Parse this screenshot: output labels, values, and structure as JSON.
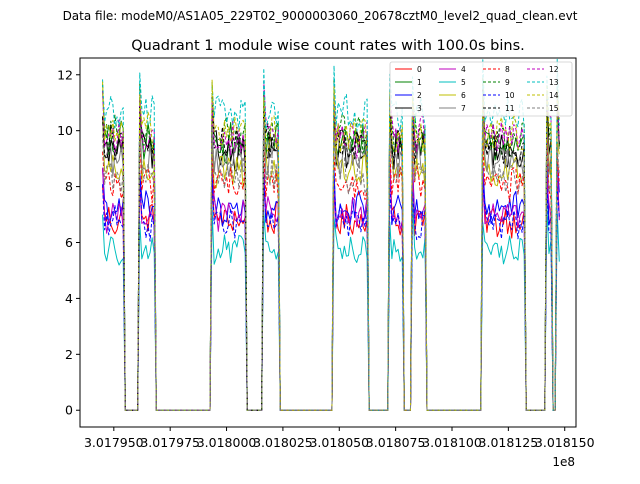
{
  "chart_data": {
    "type": "line",
    "suptitle": "Data file: modeM0/AS1A05_229T02_9000003060_20678cztM0_level2_quad_clean.evt",
    "title": "Quadrant 1 module wise count rates with 100.0s bins.",
    "xlabel": "",
    "ylabel": "",
    "x_offset_label": "1e8",
    "xlim": [
      3.017935,
      3.018155
    ],
    "ylim": [
      -0.6,
      12.6
    ],
    "x_tick_values": [
      3.01795,
      3.017975,
      3.018,
      3.018025,
      3.01805,
      3.018075,
      3.0181,
      3.018125,
      3.01815
    ],
    "x_tick_labels": [
      "3.017950",
      "3.017975",
      "3.018000",
      "3.018025",
      "3.018050",
      "3.018075",
      "3.018100",
      "3.018125",
      "3.018150"
    ],
    "y_tick_values": [
      0,
      2,
      4,
      6,
      8,
      10,
      12
    ],
    "y_tick_labels": [
      "0",
      "2",
      "4",
      "6",
      "8",
      "10",
      "12"
    ],
    "segments": [
      [
        3.017945,
        3.017955
      ],
      [
        3.017961,
        3.017968
      ],
      [
        3.017993,
        3.018009
      ],
      [
        3.018016,
        3.018023
      ],
      [
        3.018047,
        3.018063
      ],
      [
        3.018072,
        3.018078
      ],
      [
        3.018082,
        3.018088
      ],
      [
        3.018113,
        3.018132
      ],
      [
        3.018142,
        3.018144
      ],
      [
        3.018146,
        3.018148
      ]
    ],
    "zero_gaps": [
      [
        3.017955,
        3.017961
      ],
      [
        3.017968,
        3.017993
      ],
      [
        3.018009,
        3.018016
      ],
      [
        3.018023,
        3.018047
      ],
      [
        3.018063,
        3.018072
      ],
      [
        3.018078,
        3.018082
      ],
      [
        3.018088,
        3.018113
      ],
      [
        3.018132,
        3.018142
      ],
      [
        3.018144,
        3.018146
      ]
    ],
    "legend_position": "upper right",
    "series": [
      {
        "name": "0",
        "color": "#ff0000",
        "dash": "solid",
        "level": 6.8
      },
      {
        "name": "1",
        "color": "#008000",
        "dash": "solid",
        "level": 9.6
      },
      {
        "name": "2",
        "color": "#0000ff",
        "dash": "solid",
        "level": 7.2
      },
      {
        "name": "3",
        "color": "#000000",
        "dash": "solid",
        "level": 9.3
      },
      {
        "name": "4",
        "color": "#bf00bf",
        "dash": "solid",
        "level": 7.0
      },
      {
        "name": "5",
        "color": "#00bfbf",
        "dash": "solid",
        "level": 5.7
      },
      {
        "name": "6",
        "color": "#bfbf00",
        "dash": "solid",
        "level": 8.6
      },
      {
        "name": "7",
        "color": "#808080",
        "dash": "solid",
        "level": 9.0
      },
      {
        "name": "8",
        "color": "#ff0000",
        "dash": "dashed",
        "level": 8.1
      },
      {
        "name": "9",
        "color": "#008000",
        "dash": "dashed",
        "level": 9.9
      },
      {
        "name": "10",
        "color": "#0000ff",
        "dash": "dashed",
        "level": 6.7
      },
      {
        "name": "11",
        "color": "#000000",
        "dash": "dashed",
        "level": 9.5
      },
      {
        "name": "12",
        "color": "#bf00bf",
        "dash": "dashed",
        "level": 9.8
      },
      {
        "name": "13",
        "color": "#00bfbf",
        "dash": "dashed",
        "level": 10.6
      },
      {
        "name": "14",
        "color": "#bfbf00",
        "dash": "dashed",
        "level": 9.9
      },
      {
        "name": "15",
        "color": "#808080",
        "dash": "dashed",
        "level": 8.4
      }
    ]
  }
}
